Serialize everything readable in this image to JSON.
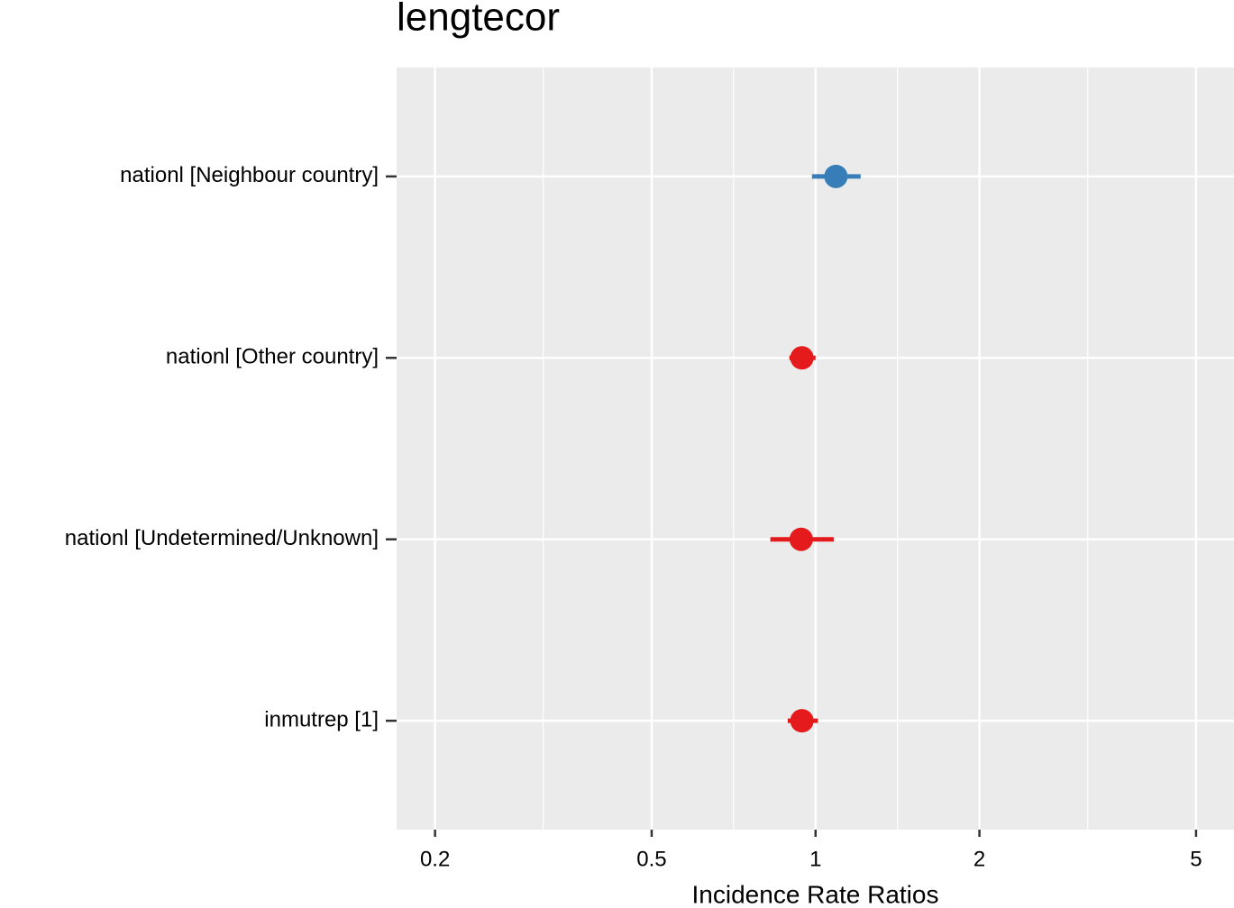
{
  "chart_data": {
    "type": "forest",
    "title": "lengtecor",
    "x_label": "Incidence Rate Ratios",
    "categories": [
      "nationl [Neighbour country]",
      "nationl [Other country]",
      "nationl [Undetermined/Unknown]",
      "inmutrep [1]"
    ],
    "values": [
      1.09,
      0.944,
      0.941,
      0.944
    ],
    "lower": [
      0.985,
      0.895,
      0.826,
      0.889
    ],
    "upper": [
      1.21,
      1.0,
      1.08,
      1.01
    ],
    "colors": [
      "#377eb8",
      "#e41a1c",
      "#e41a1c",
      "#e41a1c"
    ],
    "log_x": true,
    "xlim": [
      0.17,
      5.87
    ],
    "xticks": [
      0.2,
      0.5,
      1,
      2,
      5
    ],
    "grid": true
  }
}
